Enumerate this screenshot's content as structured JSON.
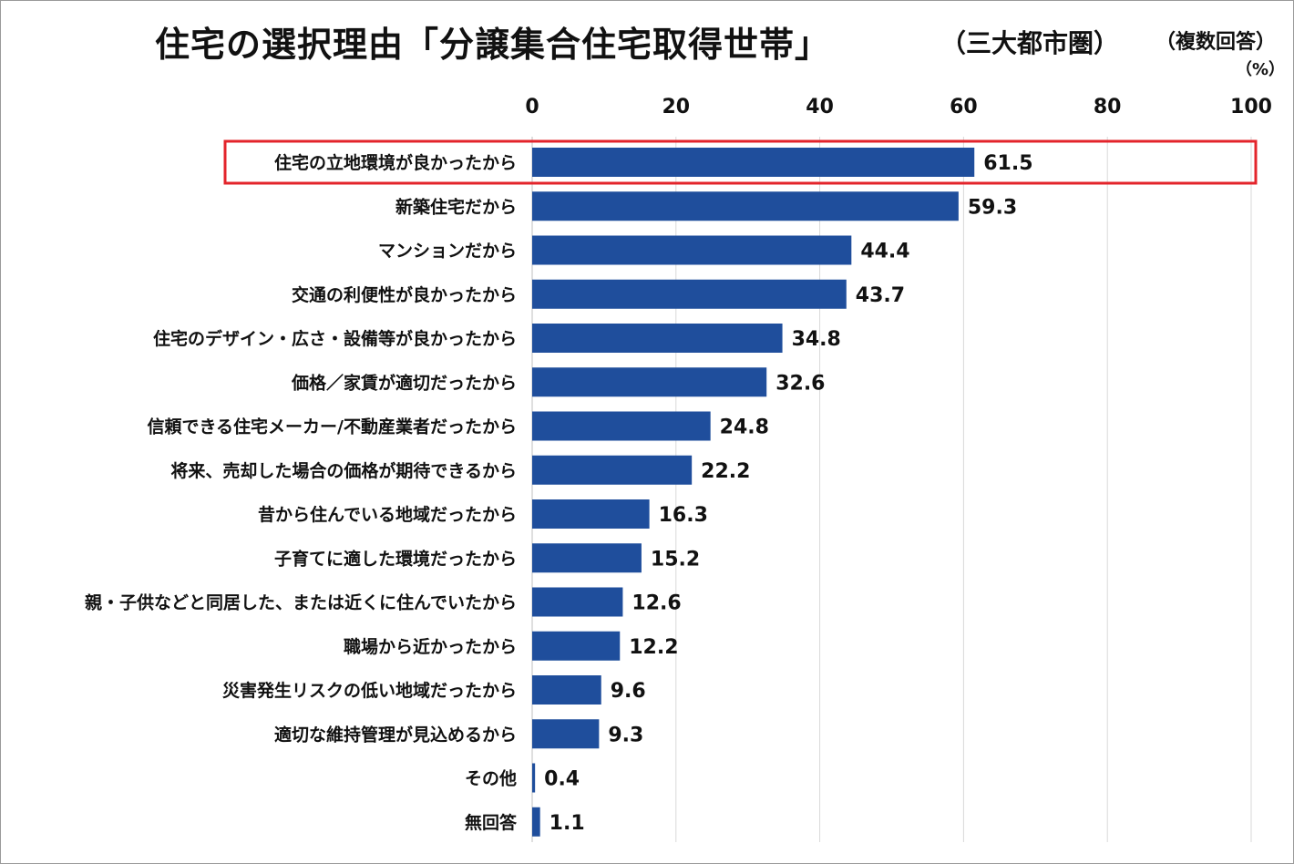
{
  "header": {
    "title": "住宅の選択理由「分譲集合住宅取得世帯」",
    "subtitle": "（三大都市圏）",
    "note": "（複数回答）",
    "unit": "（%）"
  },
  "colors": {
    "bar": "#1f4e9c",
    "highlight": "#e3242b",
    "grid": "#d9d9d9"
  },
  "chart_data": {
    "type": "bar",
    "orientation": "horizontal",
    "title": "住宅の選択理由「分譲集合住宅取得世帯」",
    "xlim": [
      0,
      100
    ],
    "xticks": [
      0,
      20,
      40,
      60,
      80,
      100
    ],
    "tick_labels": [
      "0",
      "20",
      "40",
      "60",
      "80",
      "100"
    ],
    "grid": true,
    "highlighted_index": 0,
    "categories": [
      "住宅の立地環境が良かったから",
      "新築住宅だから",
      "マンションだから",
      "交通の利便性が良かったから",
      "住宅のデザイン・広さ・設備等が良かったから",
      "価格／家賃が適切だったから",
      "信頼できる住宅メーカー/不動産業者だったから",
      "将来、売却した場合の価格が期待できるから",
      "昔から住んでいる地域だったから",
      "子育てに適した環境だったから",
      "親・子供などと同居した、または近くに住んでいたから",
      "職場から近かったから",
      "災害発生リスクの低い地域だったから",
      "適切な維持管理が見込めるから",
      "その他",
      "無回答"
    ],
    "values": [
      61.5,
      59.3,
      44.4,
      43.7,
      34.8,
      32.6,
      24.8,
      22.2,
      16.3,
      15.2,
      12.6,
      12.2,
      9.6,
      9.3,
      0.4,
      1.1
    ],
    "value_labels": [
      "61.5",
      "59.3",
      "44.4",
      "43.7",
      "34.8",
      "32.6",
      "24.8",
      "22.2",
      "16.3",
      "15.2",
      "12.6",
      "12.2",
      "9.6",
      "9.3",
      "0.4",
      "1.1"
    ]
  }
}
